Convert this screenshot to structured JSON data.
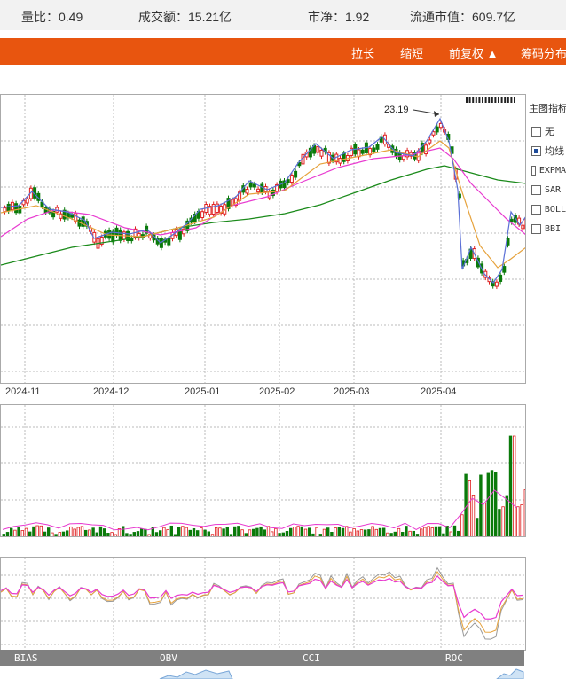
{
  "stats": {
    "volume_ratio_label": "量比：",
    "volume_ratio": "0.49",
    "turnover_label": "成交额：",
    "turnover": "15.21亿",
    "pb_label": "市净：",
    "pb": "1.92",
    "float_cap_label": "流通市值：",
    "float_cap": "609.7亿"
  },
  "toolbar": {
    "stretch": "拉长",
    "shrink": "缩短",
    "adjust": "前复权 ▲",
    "chips": "筹码分布"
  },
  "side_panel": {
    "title": "主图指标",
    "options": [
      {
        "label": "无",
        "checked": false
      },
      {
        "label": "均线",
        "checked": true
      },
      {
        "label": "EXPMA",
        "checked": false
      },
      {
        "label": "SAR",
        "checked": false
      },
      {
        "label": "BOLL",
        "checked": false
      },
      {
        "label": "BBI",
        "checked": false
      }
    ]
  },
  "x_axis": [
    "2024-11",
    "2024-12",
    "2025-01",
    "2025-02",
    "2025-03",
    "2025-04"
  ],
  "annotation": {
    "peak_price": "23.19"
  },
  "indicator_tabs": [
    "BIAS",
    "OBV",
    "CCI",
    "ROC"
  ],
  "colors": {
    "up": "#e02020",
    "down": "#0a7a0a",
    "ma5": "#5a6fd6",
    "ma10": "#e6a23c",
    "ma20": "#e83ad0",
    "ma60": "#1a8a1a",
    "toolbar": "#e8550f"
  }
}
